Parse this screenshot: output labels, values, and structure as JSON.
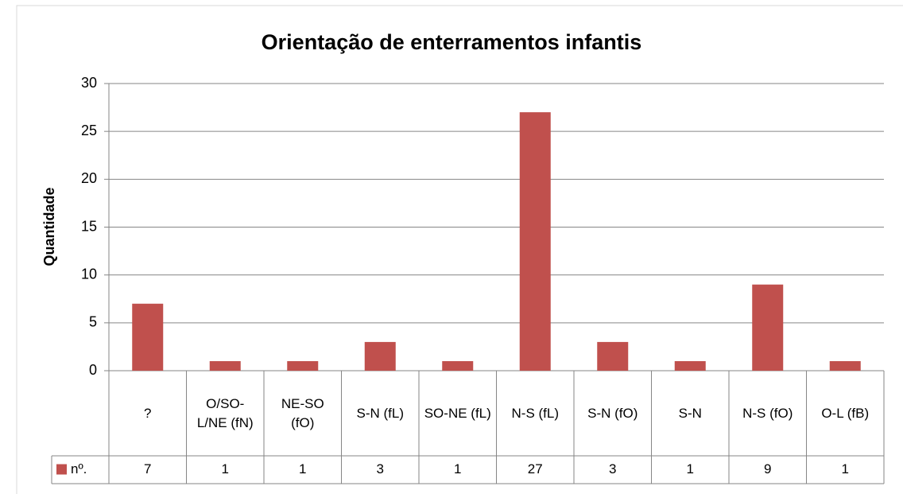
{
  "chart_data": {
    "type": "bar",
    "title": "Orientação de enterramentos infantis",
    "y_label": "Quantidade",
    "categories": [
      "?",
      "O/SO-L/NE (fN)",
      "NE-SO (fO)",
      "S-N (fL)",
      "SO-NE (fL)",
      "N-S (fL)",
      "S-N (fO)",
      "S-N",
      "N-S (fO)",
      "O-L (fB)"
    ],
    "series": [
      {
        "name": "nº.",
        "color": "#c0504d",
        "values": [
          7,
          1,
          1,
          3,
          1,
          27,
          3,
          1,
          9,
          1
        ]
      }
    ],
    "ylim": [
      0,
      30
    ],
    "yticks": [
      0,
      5,
      10,
      15,
      20,
      25,
      30
    ],
    "grid": true,
    "data_table": true
  }
}
